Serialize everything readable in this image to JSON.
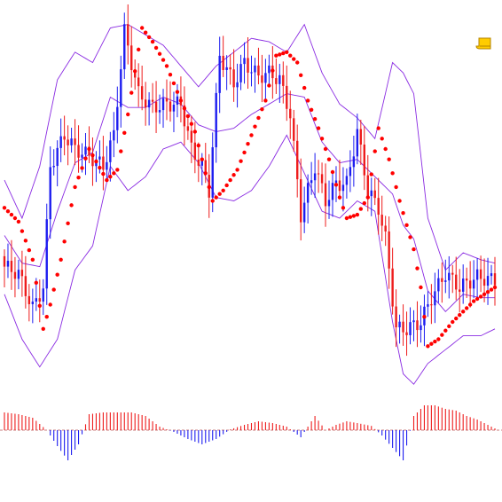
{
  "chart_data": [
    {
      "type": "candlestick",
      "title": "",
      "xlabel": "",
      "ylabel": "",
      "grid": false,
      "legend": "none",
      "x_range": [
        0,
        139
      ],
      "ylim": [
        0,
        100
      ],
      "colors": {
        "up_candle": "#1d1df0",
        "down_candle": "#ee1c1c",
        "band": "#8a2be2",
        "parabolic_sar": "#ff0000",
        "marker": "#ffcc00"
      },
      "overlays": [
        "bollinger_bands",
        "parabolic_sar"
      ],
      "corner_icon": "scroll-icon",
      "price_path": [
        [
          0,
          26.0
        ],
        [
          4,
          24.0
        ],
        [
          8,
          14.0
        ],
        [
          11,
          20.0
        ],
        [
          13,
          55.0
        ],
        [
          17,
          64.0
        ],
        [
          20,
          60.0
        ],
        [
          24,
          58.0
        ],
        [
          28,
          55.0
        ],
        [
          31,
          64.0
        ],
        [
          34,
          94.0
        ],
        [
          38,
          76.0
        ],
        [
          42,
          72.0
        ],
        [
          46,
          73.0
        ],
        [
          50,
          73.0
        ],
        [
          53,
          60.0
        ],
        [
          56,
          55.0
        ],
        [
          58,
          48.0
        ],
        [
          61,
          87.0
        ],
        [
          65,
          79.0
        ],
        [
          68,
          85.0
        ],
        [
          72,
          81.0
        ],
        [
          75,
          82.0
        ],
        [
          78,
          80.0
        ],
        [
          81,
          70.0
        ],
        [
          84,
          41.0
        ],
        [
          88,
          55.0
        ],
        [
          91,
          45.0
        ],
        [
          94,
          50.0
        ],
        [
          97,
          50.0
        ],
        [
          100,
          65.0
        ],
        [
          103,
          48.0
        ],
        [
          106,
          43.0
        ],
        [
          108,
          34.0
        ],
        [
          111,
          8.0
        ],
        [
          114,
          8.0
        ],
        [
          118,
          10.0
        ],
        [
          121,
          17.0
        ],
        [
          125,
          24.0
        ],
        [
          129,
          20.0
        ],
        [
          134,
          23.0
        ],
        [
          139,
          22.0
        ]
      ],
      "sar_path": [
        [
          0,
          43.0
        ],
        [
          4,
          39.0
        ],
        [
          8,
          28.0
        ],
        [
          11,
          8.0
        ],
        [
          13,
          15.0
        ],
        [
          16,
          28.0
        ],
        [
          20,
          49.0
        ],
        [
          24,
          60.0
        ],
        [
          29,
          51.0
        ],
        [
          32,
          54.0
        ],
        [
          35,
          70.0
        ],
        [
          39,
          95.0
        ],
        [
          42,
          91.0
        ],
        [
          46,
          84.0
        ],
        [
          50,
          74.0
        ],
        [
          54,
          65.0
        ],
        [
          57,
          53.0
        ],
        [
          59,
          45.0
        ],
        [
          62,
          48.0
        ],
        [
          66,
          54.0
        ],
        [
          70,
          64.0
        ],
        [
          74,
          74.0
        ],
        [
          77,
          87.0
        ],
        [
          80,
          88.0
        ],
        [
          83,
          85.0
        ],
        [
          86,
          74.0
        ],
        [
          89,
          66.0
        ],
        [
          92,
          57.0
        ],
        [
          95,
          46.0
        ],
        [
          97,
          40.0
        ],
        [
          100,
          41.0
        ],
        [
          103,
          46.0
        ],
        [
          106,
          66.0
        ],
        [
          109,
          57.0
        ],
        [
          112,
          45.0
        ],
        [
          116,
          31.0
        ],
        [
          118,
          20.0
        ],
        [
          120,
          3.0
        ],
        [
          123,
          5.0
        ],
        [
          127,
          10.0
        ],
        [
          133,
          16.0
        ],
        [
          139,
          20.0
        ]
      ],
      "band_upper_path": [
        [
          0,
          51.0
        ],
        [
          5,
          40.0
        ],
        [
          10,
          55.0
        ],
        [
          15,
          80.0
        ],
        [
          20,
          88.0
        ],
        [
          25,
          85.0
        ],
        [
          30,
          95.0
        ],
        [
          35,
          96.0
        ],
        [
          40,
          93.0
        ],
        [
          45,
          90.0
        ],
        [
          50,
          84.0
        ],
        [
          55,
          78.0
        ],
        [
          60,
          84.0
        ],
        [
          65,
          88.0
        ],
        [
          70,
          92.0
        ],
        [
          75,
          91.0
        ],
        [
          80,
          88.0
        ],
        [
          85,
          96.0
        ],
        [
          90,
          82.0
        ],
        [
          95,
          73.0
        ],
        [
          100,
          69.0
        ],
        [
          105,
          63.0
        ],
        [
          110,
          85.0
        ],
        [
          113,
          82.0
        ],
        [
          116,
          76.0
        ],
        [
          120,
          40.0
        ],
        [
          125,
          25.0
        ],
        [
          130,
          30.0
        ],
        [
          135,
          28.0
        ],
        [
          139,
          27.0
        ]
      ],
      "band_lower_path": [
        [
          0,
          18.0
        ],
        [
          5,
          5.0
        ],
        [
          10,
          -3.0
        ],
        [
          15,
          5.0
        ],
        [
          20,
          25.0
        ],
        [
          25,
          32.0
        ],
        [
          30,
          55.0
        ],
        [
          35,
          48.0
        ],
        [
          40,
          52.0
        ],
        [
          45,
          60.0
        ],
        [
          50,
          62.0
        ],
        [
          55,
          56.0
        ],
        [
          60,
          46.0
        ],
        [
          65,
          45.0
        ],
        [
          70,
          48.0
        ],
        [
          75,
          55.0
        ],
        [
          80,
          64.0
        ],
        [
          85,
          53.0
        ],
        [
          90,
          42.0
        ],
        [
          95,
          40.0
        ],
        [
          100,
          45.0
        ],
        [
          105,
          42.0
        ],
        [
          110,
          10.0
        ],
        [
          113,
          -5.0
        ],
        [
          116,
          -8.0
        ],
        [
          120,
          -2.0
        ],
        [
          125,
          2.0
        ],
        [
          130,
          6.0
        ],
        [
          135,
          6.0
        ],
        [
          139,
          8.0
        ]
      ],
      "band_middle_path": [
        [
          0,
          35.0
        ],
        [
          5,
          27.0
        ],
        [
          10,
          26.0
        ],
        [
          15,
          42.0
        ],
        [
          20,
          56.0
        ],
        [
          25,
          59.0
        ],
        [
          30,
          75.0
        ],
        [
          35,
          72.0
        ],
        [
          40,
          72.0
        ],
        [
          45,
          75.0
        ],
        [
          50,
          73.0
        ],
        [
          55,
          67.0
        ],
        [
          60,
          65.0
        ],
        [
          65,
          66.0
        ],
        [
          70,
          70.0
        ],
        [
          75,
          73.0
        ],
        [
          80,
          76.0
        ],
        [
          85,
          75.0
        ],
        [
          90,
          62.0
        ],
        [
          95,
          56.0
        ],
        [
          100,
          57.0
        ],
        [
          105,
          52.0
        ],
        [
          110,
          47.0
        ],
        [
          113,
          38.0
        ],
        [
          116,
          34.0
        ],
        [
          120,
          19.0
        ],
        [
          125,
          13.0
        ],
        [
          130,
          18.0
        ],
        [
          135,
          17.0
        ],
        [
          139,
          17.0
        ]
      ]
    },
    {
      "type": "histogram",
      "title": "",
      "xlabel": "",
      "ylabel": "",
      "grid": false,
      "legend": "none",
      "x_range": [
        0,
        139
      ],
      "ylim": [
        -1,
        1
      ],
      "zero_line": true,
      "colors": {
        "positive": "#ee1c1c",
        "negative": "#1d1df0",
        "zero_line": "#c87d7d"
      },
      "value_path": [
        [
          0,
          0.5
        ],
        [
          4,
          0.45
        ],
        [
          8,
          0.35
        ],
        [
          12,
          0.0
        ],
        [
          15,
          -0.45
        ],
        [
          18,
          -0.85
        ],
        [
          21,
          -0.4
        ],
        [
          24,
          0.45
        ],
        [
          28,
          0.5
        ],
        [
          32,
          0.5
        ],
        [
          36,
          0.5
        ],
        [
          40,
          0.4
        ],
        [
          44,
          0.1
        ],
        [
          48,
          -0.05
        ],
        [
          52,
          -0.25
        ],
        [
          56,
          -0.4
        ],
        [
          60,
          -0.25
        ],
        [
          64,
          0.02
        ],
        [
          68,
          0.15
        ],
        [
          72,
          0.25
        ],
        [
          76,
          0.2
        ],
        [
          80,
          0.1
        ],
        [
          84,
          -0.2
        ],
        [
          88,
          0.4
        ],
        [
          91,
          0.0
        ],
        [
          94,
          0.15
        ],
        [
          97,
          0.25
        ],
        [
          100,
          0.2
        ],
        [
          104,
          0.12
        ],
        [
          107,
          -0.15
        ],
        [
          110,
          -0.5
        ],
        [
          113,
          -0.85
        ],
        [
          116,
          0.4
        ],
        [
          119,
          0.7
        ],
        [
          122,
          0.7
        ],
        [
          125,
          0.6
        ],
        [
          128,
          0.55
        ],
        [
          131,
          0.4
        ],
        [
          134,
          0.3
        ],
        [
          137,
          0.15
        ],
        [
          139,
          0.05
        ]
      ]
    }
  ]
}
